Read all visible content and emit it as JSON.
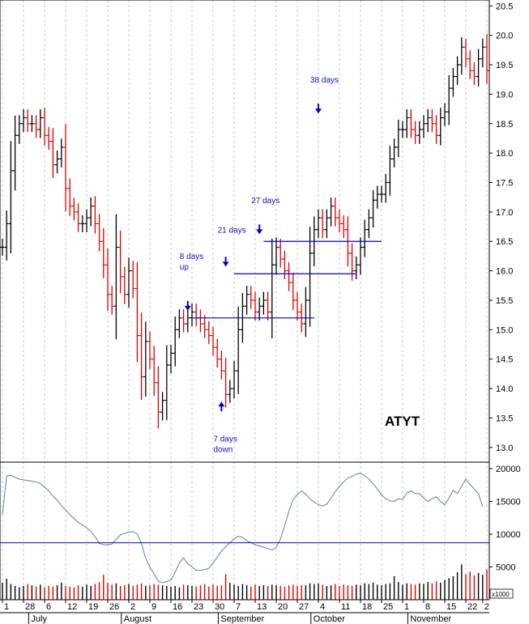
{
  "chart_data": {
    "type": "ohlc",
    "symbol": "ATYT",
    "price_axis": {
      "ylim": [
        12.75,
        20.6
      ],
      "ticks": [
        13.0,
        13.5,
        14.0,
        14.5,
        15.0,
        15.5,
        16.0,
        16.5,
        17.0,
        17.5,
        18.0,
        18.5,
        19.0,
        19.5,
        20.0,
        20.5
      ],
      "tick_labels": [
        "13.0",
        "13.5",
        "14.0",
        "14.5",
        "15.0",
        "15.5",
        "16.0",
        "16.5",
        "17.0",
        "17.5",
        "18.0",
        "18.5",
        "19.0",
        "19.5",
        "20.0",
        "20.5"
      ]
    },
    "volume_axis": {
      "ylim": [
        0,
        21000
      ],
      "ticks": [
        5000,
        10000,
        15000,
        20000
      ],
      "tick_labels": [
        "5000",
        "10000",
        "15000",
        "20000"
      ],
      "unit_label": "x1000",
      "reference_level": 8700
    },
    "x_axis": {
      "day_ticks": [
        {
          "i": 0,
          "label": "1"
        },
        {
          "i": 5,
          "label": "28"
        },
        {
          "i": 10,
          "label": "6"
        },
        {
          "i": 15,
          "label": "12"
        },
        {
          "i": 20,
          "label": "19"
        },
        {
          "i": 25,
          "label": "26"
        },
        {
          "i": 30,
          "label": "2"
        },
        {
          "i": 35,
          "label": "9"
        },
        {
          "i": 40,
          "label": "16"
        },
        {
          "i": 45,
          "label": "23"
        },
        {
          "i": 50,
          "label": "30"
        },
        {
          "i": 55,
          "label": "7"
        },
        {
          "i": 60,
          "label": "13"
        },
        {
          "i": 65,
          "label": "20"
        },
        {
          "i": 70,
          "label": "27"
        },
        {
          "i": 75,
          "label": "4"
        },
        {
          "i": 80,
          "label": "11"
        },
        {
          "i": 85,
          "label": "18"
        },
        {
          "i": 90,
          "label": "25"
        },
        {
          "i": 95,
          "label": "1"
        },
        {
          "i": 100,
          "label": "8"
        },
        {
          "i": 105,
          "label": "15"
        },
        {
          "i": 110,
          "label": "22"
        },
        {
          "i": 114,
          "label": "2"
        }
      ],
      "months": [
        {
          "i": 7,
          "label": "July"
        },
        {
          "i": 29,
          "label": "August"
        },
        {
          "i": 52,
          "label": "September"
        },
        {
          "i": 74,
          "label": "October"
        },
        {
          "i": 97,
          "label": "November"
        }
      ]
    },
    "close": [
      16.4,
      16.8,
      17.7,
      18.3,
      18.5,
      18.6,
      18.5,
      18.5,
      18.4,
      18.6,
      18.3,
      18.2,
      17.8,
      17.9,
      18.1,
      17.4,
      17.1,
      17.0,
      16.8,
      16.8,
      16.9,
      17.1,
      16.8,
      16.5,
      16.1,
      15.6,
      15.4,
      16.4,
      15.9,
      15.6,
      16.0,
      15.7,
      14.9,
      14.2,
      14.8,
      14.5,
      14.1,
      13.6,
      13.8,
      14.4,
      14.6,
      15.0,
      15.2,
      15.1,
      15.2,
      15.3,
      15.2,
      15.1,
      15.0,
      14.9,
      14.7,
      14.5,
      14.3,
      13.9,
      14.0,
      14.3,
      15.0,
      15.4,
      15.6,
      15.5,
      15.3,
      15.4,
      15.5,
      15.3,
      16.1,
      16.4,
      16.2,
      16.0,
      15.8,
      15.5,
      15.3,
      15.1,
      15.5,
      16.3,
      16.7,
      16.9,
      16.7,
      16.9,
      17.1,
      16.9,
      16.8,
      16.7,
      16.3,
      16.0,
      16.1,
      16.4,
      16.7,
      16.9,
      17.2,
      17.3,
      17.3,
      17.5,
      17.9,
      18.1,
      18.4,
      18.4,
      18.6,
      18.4,
      18.3,
      18.4,
      18.5,
      18.6,
      18.5,
      18.3,
      18.6,
      18.7,
      19.1,
      19.3,
      19.5,
      19.8,
      19.6,
      19.4,
      19.3,
      19.6,
      19.8,
      19.4
    ],
    "volume": [
      2600,
      3200,
      2400,
      2100,
      1900,
      2100,
      2400,
      2200,
      2000,
      2300,
      1900,
      2100,
      2000,
      2200,
      2600,
      2100,
      2000,
      1900,
      2200,
      2000,
      2300,
      2100,
      2400,
      2700,
      3800,
      2600,
      2300,
      2500,
      2100,
      2200,
      2400,
      2100,
      2300,
      2500,
      2100,
      2200,
      2400,
      2300,
      2200,
      2100,
      2000,
      2100,
      1900,
      2300,
      2200,
      2100,
      2000,
      2200,
      2400,
      2000,
      2300,
      2100,
      2200,
      3900,
      2600,
      2300,
      2100,
      2400,
      2200,
      2000,
      2300,
      2100,
      2200,
      2100,
      2300,
      2200,
      2100,
      2000,
      2200,
      2300,
      2100,
      2200,
      2200,
      2500,
      2400,
      2500,
      2300,
      2100,
      2200,
      2400,
      2100,
      2300,
      2200,
      2100,
      2300,
      2200,
      2500,
      2400,
      2600,
      2300,
      2200,
      2400,
      2500,
      3600,
      2700,
      2300,
      2500,
      2400,
      2300,
      2500,
      2400,
      2700,
      2500,
      2800,
      2600,
      3000,
      3300,
      3600,
      4200,
      5400,
      3900,
      4300,
      3700,
      4100,
      3800,
      4600
    ],
    "volume_ma": [
      13000,
      18900,
      19000,
      18700,
      18400,
      18300,
      18200,
      18100,
      18000,
      17700,
      17200,
      16600,
      15800,
      15200,
      14400,
      13700,
      13000,
      12400,
      11800,
      11400,
      11000,
      10400,
      9600,
      8600,
      8400,
      8400,
      8500,
      9200,
      9900,
      10100,
      10300,
      10400,
      10000,
      8600,
      6300,
      5000,
      3900,
      2800,
      2600,
      2800,
      3000,
      4200,
      5600,
      6400,
      5500,
      5000,
      4500,
      4500,
      4600,
      4800,
      5600,
      6500,
      7400,
      8100,
      8700,
      9300,
      9700,
      9500,
      9000,
      8700,
      8400,
      8200,
      8000,
      7800,
      7600,
      8000,
      9300,
      11300,
      13500,
      15300,
      16100,
      16600,
      16100,
      15400,
      14900,
      14500,
      14300,
      14600,
      15500,
      16500,
      17300,
      18000,
      18600,
      18800,
      19200,
      19300,
      18900,
      18400,
      17700,
      16900,
      16000,
      15400,
      15100,
      15000,
      15400,
      15300,
      16300,
      16600,
      16200,
      16200,
      15500,
      15000,
      15400,
      15700,
      15000,
      14500,
      15500,
      16700,
      16200,
      17300,
      18400,
      17600,
      16900,
      16200,
      14200
    ],
    "support_lines": [
      {
        "x0": 45,
        "x1": 74,
        "price": 15.2
      },
      {
        "x0": 55,
        "x1": 84,
        "price": 15.95
      },
      {
        "x0": 62,
        "x1": 90,
        "price": 16.5
      }
    ],
    "annotations": [
      {
        "text": "8 days",
        "sub": "up",
        "i": 44,
        "price": 16.2,
        "arrow": "down",
        "arrow_price": 15.35
      },
      {
        "text": "7 days",
        "sub": "down",
        "i": 52,
        "price": 13.1,
        "arrow": "up",
        "arrow_price": 13.75
      },
      {
        "text": "21 days",
        "i": 53,
        "price": 16.65,
        "arrow": "down",
        "arrow_price": 16.1
      },
      {
        "text": "27 days",
        "i": 61,
        "price": 17.15,
        "arrow": "down",
        "arrow_price": 16.65
      },
      {
        "text": "38 days",
        "i": 75,
        "price": 19.2,
        "arrow": "down",
        "arrow_price": 18.7
      }
    ]
  }
}
